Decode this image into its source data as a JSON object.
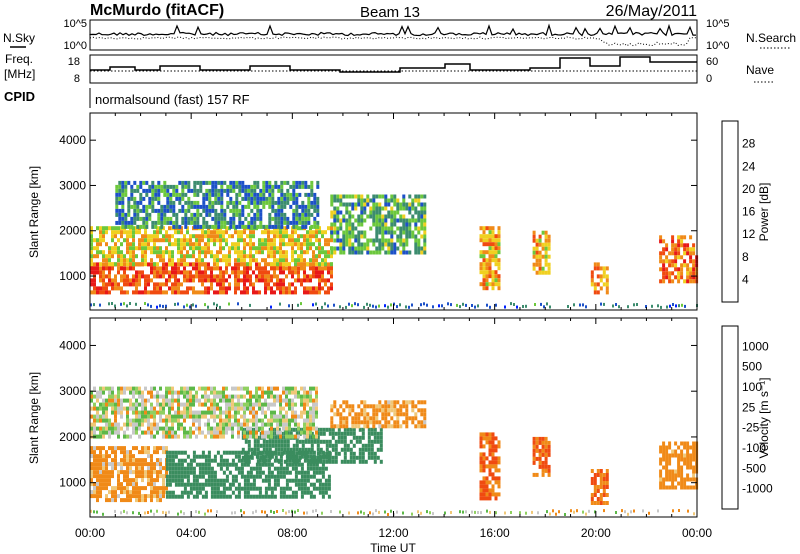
{
  "header": {
    "station": "McMurdo (fitACF)",
    "beam": "Beam 13",
    "date": "26/May/2011",
    "cpid_label": "CPID",
    "cpid_value": "normalsound (fast) 157 RF"
  },
  "summary_panels": {
    "nsky": {
      "label": "N.Sky",
      "ticks_left": [
        "10^5",
        "10^0"
      ],
      "right_label": "N.Search",
      "ticks_right": [
        "10^5",
        "10^0"
      ]
    },
    "freq": {
      "label_line1": "Freq.",
      "label_line2": "[MHz]",
      "ticks_left": [
        "18",
        "8"
      ],
      "right_label": "Nave",
      "ticks_right": [
        "60",
        "0"
      ]
    }
  },
  "chart_data": [
    {
      "type": "heatmap",
      "title": "",
      "xlabel": "",
      "ylabel": "Slant Range [km]",
      "x_ticks": [
        "00:00",
        "04:00",
        "08:00",
        "12:00",
        "16:00",
        "20:00",
        "00:00"
      ],
      "y_ticks": [
        "1000",
        "2000",
        "3000",
        "4000"
      ],
      "ylim": [
        250,
        4600
      ],
      "colorbar": {
        "label": "Power [dB]",
        "ticks": [
          "4",
          "8",
          "12",
          "16",
          "20",
          "24",
          "28"
        ],
        "colors": [
          "#0020ff",
          "#1c50c8",
          "#3c8c6e",
          "#6cc83c",
          "#f0d020",
          "#f08a18",
          "#f04a10",
          "#e81818"
        ]
      },
      "echo_regions": [
        {
          "t_start": 0.0,
          "t_end": 9.5,
          "r_start": 600,
          "r_end": 1300,
          "value_db": 26
        },
        {
          "t_start": 0.0,
          "t_end": 9.5,
          "r_start": 1300,
          "r_end": 2100,
          "value_db": 18
        },
        {
          "t_start": 1.0,
          "t_end": 9.0,
          "r_start": 2100,
          "r_end": 3100,
          "value_db": 10
        },
        {
          "t_start": 9.5,
          "t_end": 13.2,
          "r_start": 1500,
          "r_end": 2800,
          "value_db": 12
        },
        {
          "t_start": 15.4,
          "t_end": 16.2,
          "r_start": 700,
          "r_end": 2100,
          "value_db": 20
        },
        {
          "t_start": 17.5,
          "t_end": 18.1,
          "r_start": 1100,
          "r_end": 2000,
          "value_db": 20
        },
        {
          "t_start": 19.8,
          "t_end": 20.4,
          "r_start": 600,
          "r_end": 1300,
          "value_db": 22
        },
        {
          "t_start": 22.5,
          "t_end": 24.0,
          "r_start": 900,
          "r_end": 1900,
          "value_db": 24
        }
      ]
    },
    {
      "type": "heatmap",
      "title": "",
      "xlabel": "Time UT",
      "ylabel": "Slant Range [km]",
      "x_ticks": [
        "00:00",
        "04:00",
        "08:00",
        "12:00",
        "16:00",
        "20:00",
        "00:00"
      ],
      "y_ticks": [
        "1000",
        "2000",
        "3000",
        "4000"
      ],
      "ylim": [
        250,
        4600
      ],
      "colorbar": {
        "label": "Velocity [m s⁻¹]",
        "ticks": [
          "1000",
          "500",
          "100",
          "25",
          "-25",
          "-100",
          "-500",
          "-1000"
        ],
        "colors": [
          "#2040c0",
          "#3a8c5e",
          "#5cb848",
          "#90d060",
          "#c8c8c8",
          "#f0c878",
          "#f08a18",
          "#f04a10",
          "#e81818"
        ]
      },
      "echo_regions": [
        {
          "t_start": 0.0,
          "t_end": 3.0,
          "r_start": 600,
          "r_end": 1800,
          "velocity": -100
        },
        {
          "t_start": 3.0,
          "t_end": 9.5,
          "r_start": 700,
          "r_end": 1700,
          "velocity": 400
        },
        {
          "t_start": 6.0,
          "t_end": 11.5,
          "r_start": 1500,
          "r_end": 2200,
          "velocity": 400
        },
        {
          "t_start": 0.0,
          "t_end": 9.0,
          "r_start": 2000,
          "r_end": 3100,
          "velocity": 10
        },
        {
          "t_start": 9.5,
          "t_end": 13.2,
          "r_start": 2200,
          "r_end": 2800,
          "velocity": -120
        },
        {
          "t_start": 15.4,
          "t_end": 16.2,
          "r_start": 700,
          "r_end": 2100,
          "velocity": -300
        },
        {
          "t_start": 17.5,
          "t_end": 18.1,
          "r_start": 1200,
          "r_end": 2000,
          "velocity": -300
        },
        {
          "t_start": 19.8,
          "t_end": 20.4,
          "r_start": 600,
          "r_end": 1300,
          "velocity": -300
        },
        {
          "t_start": 22.5,
          "t_end": 24.0,
          "r_start": 900,
          "r_end": 1900,
          "velocity": -150
        }
      ]
    }
  ]
}
